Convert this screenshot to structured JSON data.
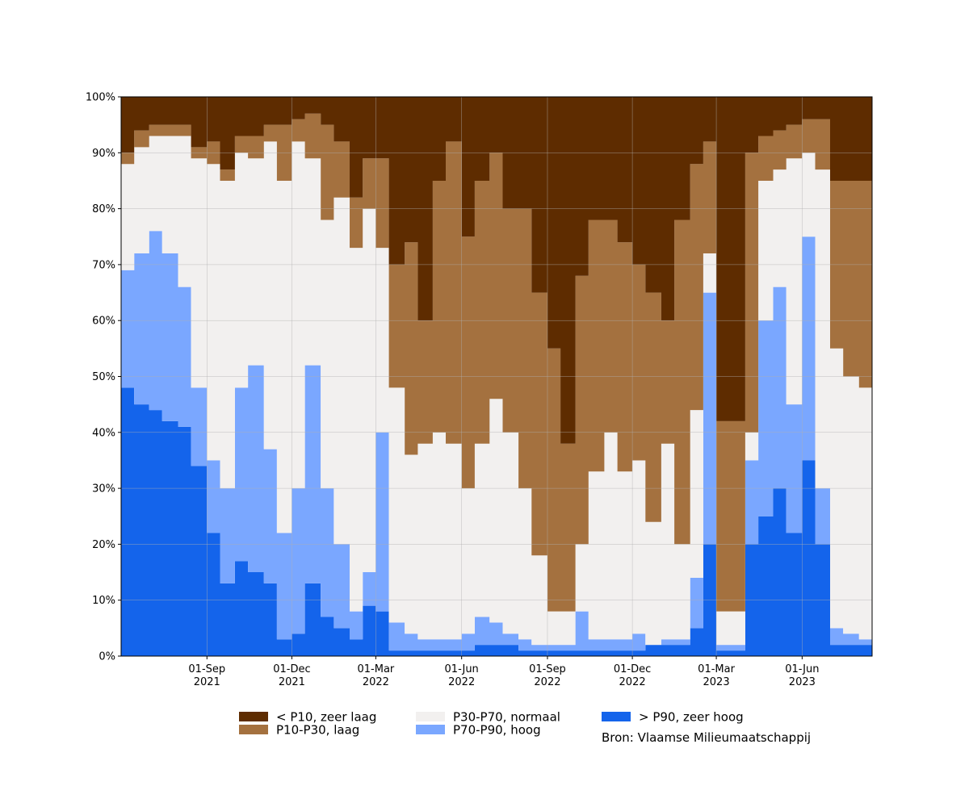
{
  "chart_data": {
    "type": "area",
    "stacked": true,
    "title": "",
    "xlabel": "",
    "ylabel": "",
    "ylim": [
      0,
      100
    ],
    "xlim": [
      "2021-06-01",
      "2023-08-15"
    ],
    "grid": true,
    "legend_position": "bottom",
    "source_note": "Bron: Vlaamse Milieumaatschappij",
    "y_ticks": [
      "0%",
      "10%",
      "20%",
      "30%",
      "40%",
      "50%",
      "60%",
      "70%",
      "80%",
      "90%",
      "100%"
    ],
    "x_ticks": [
      {
        "date": "2021-09-01",
        "line1": "01-Sep",
        "line2": "2021"
      },
      {
        "date": "2021-12-01",
        "line1": "01-Dec",
        "line2": "2021"
      },
      {
        "date": "2022-03-01",
        "line1": "01-Mar",
        "line2": "2022"
      },
      {
        "date": "2022-06-01",
        "line1": "01-Jun",
        "line2": "2022"
      },
      {
        "date": "2022-09-01",
        "line1": "01-Sep",
        "line2": "2022"
      },
      {
        "date": "2022-12-01",
        "line1": "01-Dec",
        "line2": "2022"
      },
      {
        "date": "2023-03-01",
        "line1": "01-Mar",
        "line2": "2023"
      },
      {
        "date": "2023-06-01",
        "line1": "01-Jun",
        "line2": "2023"
      }
    ],
    "series_order": [
      "> P90, zeer hoog",
      "P70-P90, hoog",
      "P30-P70, normaal",
      "P10-P30, laag",
      "< P10, zeer laag"
    ],
    "legend_order": [
      "< P10, zeer laag",
      "P10-P30, laag",
      "P30-P70, normaal",
      "P70-P90, hoog",
      "> P90, zeer hoog"
    ],
    "colors": {
      "< P10, zeer laag": "#5e2c00",
      "P10-P30, laag": "#a4713f",
      "P30-P70, normaal": "#f2f0ef",
      "P70-P90, hoog": "#7aa7ff",
      "> P90, zeer hoog": "#1464eb"
    },
    "x": [
      "2021-06-01",
      "2021-06-15",
      "2021-07-01",
      "2021-07-15",
      "2021-08-01",
      "2021-08-15",
      "2021-09-01",
      "2021-09-15",
      "2021-10-01",
      "2021-10-15",
      "2021-11-01",
      "2021-11-15",
      "2021-12-01",
      "2021-12-15",
      "2022-01-01",
      "2022-01-15",
      "2022-02-01",
      "2022-02-15",
      "2022-03-01",
      "2022-03-15",
      "2022-04-01",
      "2022-04-15",
      "2022-05-01",
      "2022-05-15",
      "2022-06-01",
      "2022-06-15",
      "2022-07-01",
      "2022-07-15",
      "2022-08-01",
      "2022-08-15",
      "2022-09-01",
      "2022-09-15",
      "2022-10-01",
      "2022-10-15",
      "2022-11-01",
      "2022-11-15",
      "2022-12-01",
      "2022-12-15",
      "2023-01-01",
      "2023-01-15",
      "2023-02-01",
      "2023-02-15",
      "2023-03-01",
      "2023-03-15",
      "2023-04-01",
      "2023-04-15",
      "2023-05-01",
      "2023-05-15",
      "2023-06-01",
      "2023-06-15",
      "2023-07-01",
      "2023-07-15",
      "2023-08-01",
      "2023-08-15"
    ],
    "cumulative": {
      "> P90, zeer hoog": [
        48,
        45,
        44,
        42,
        41,
        34,
        22,
        13,
        17,
        15,
        13,
        3,
        4,
        13,
        7,
        5,
        3,
        9,
        8,
        1,
        1,
        1,
        1,
        1,
        1,
        2,
        2,
        2,
        1,
        1,
        1,
        1,
        1,
        1,
        1,
        1,
        1,
        2,
        2,
        2,
        5,
        20,
        1,
        1,
        20,
        25,
        30,
        22,
        35,
        20,
        2,
        2,
        2,
        2
      ],
      "P70-P90, hoog": [
        69,
        72,
        76,
        72,
        66,
        48,
        35,
        30,
        48,
        52,
        37,
        22,
        30,
        52,
        30,
        20,
        8,
        15,
        40,
        6,
        4,
        3,
        3,
        3,
        4,
        7,
        6,
        4,
        3,
        2,
        2,
        2,
        8,
        3,
        3,
        3,
        4,
        2,
        3,
        3,
        14,
        65,
        2,
        2,
        35,
        60,
        66,
        45,
        75,
        30,
        5,
        4,
        3,
        6
      ],
      "P30-P70, normaal": [
        88,
        91,
        93,
        93,
        93,
        89,
        88,
        85,
        90,
        89,
        92,
        85,
        92,
        89,
        78,
        82,
        73,
        80,
        73,
        48,
        36,
        38,
        40,
        38,
        30,
        38,
        46,
        40,
        30,
        18,
        8,
        8,
        20,
        33,
        40,
        33,
        35,
        24,
        38,
        20,
        44,
        72,
        8,
        8,
        40,
        85,
        87,
        89,
        90,
        87,
        55,
        50,
        48,
        32
      ],
      "P10-P30, laag": [
        90,
        94,
        95,
        95,
        95,
        91,
        92,
        87,
        93,
        93,
        95,
        95,
        96,
        97,
        95,
        92,
        82,
        89,
        89,
        70,
        74,
        60,
        85,
        92,
        75,
        85,
        90,
        80,
        80,
        65,
        55,
        38,
        68,
        78,
        78,
        74,
        70,
        65,
        60,
        78,
        88,
        92,
        42,
        42,
        90,
        93,
        94,
        95,
        96,
        96,
        85,
        85,
        85,
        92
      ],
      "< P10, zeer laag": [
        100,
        100,
        100,
        100,
        100,
        100,
        100,
        100,
        100,
        100,
        100,
        100,
        100,
        100,
        100,
        100,
        100,
        100,
        100,
        100,
        100,
        100,
        100,
        100,
        100,
        100,
        100,
        100,
        100,
        100,
        100,
        100,
        100,
        100,
        100,
        100,
        100,
        100,
        100,
        100,
        100,
        100,
        100,
        100,
        100,
        100,
        100,
        100,
        100,
        100,
        100,
        100,
        100,
        100
      ]
    }
  }
}
